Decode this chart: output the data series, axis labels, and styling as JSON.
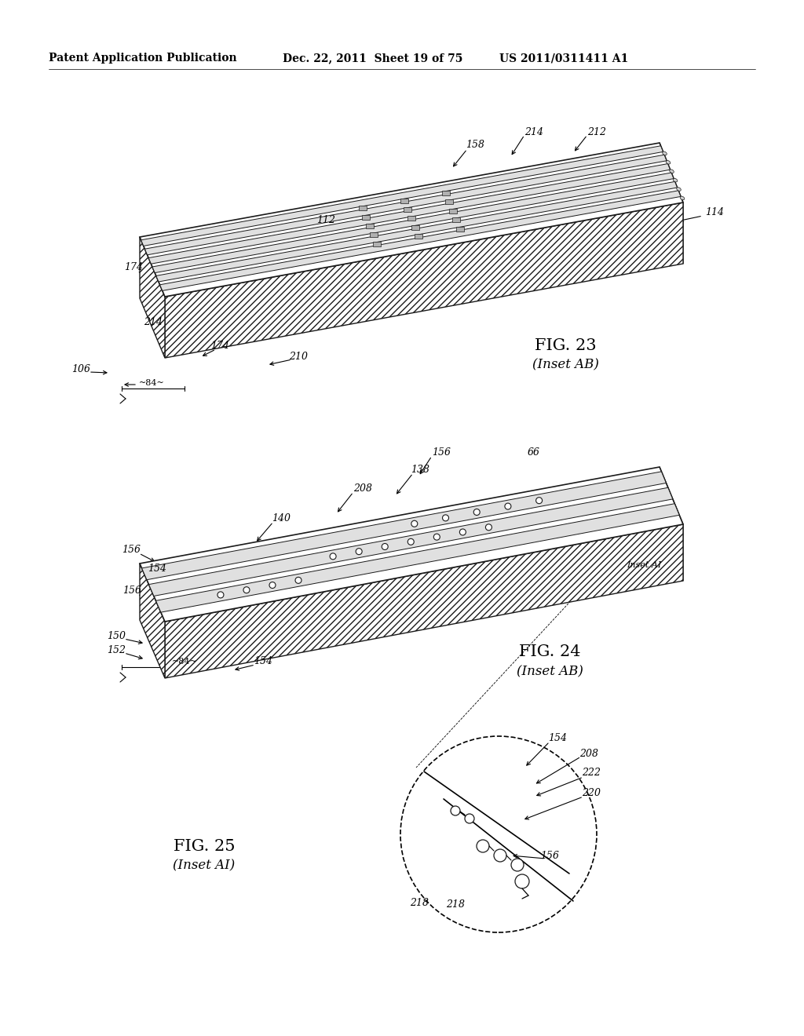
{
  "bg_color": "#ffffff",
  "header_left": "Patent Application Publication",
  "header_mid": "Dec. 22, 2011  Sheet 19 of 75",
  "header_right": "US 2011/0311411 A1",
  "line_color": "#1a1a1a",
  "hatch_color": "#333333"
}
